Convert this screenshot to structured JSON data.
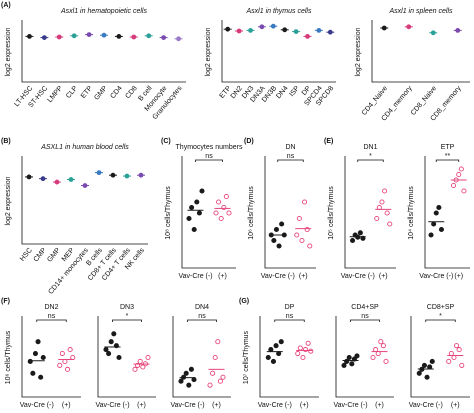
{
  "chart_data": [
    {
      "type": "strip",
      "panel": "(A)",
      "title": "Asxl1 in hematopoietic cells",
      "ylabel": "log2 expression",
      "categories": [
        "LT-HSC",
        "ST-HSC",
        "LMPP",
        "CLP",
        "ETP",
        "GMP",
        "CD4",
        "CD8",
        "B cell",
        "Monocyte",
        "Granulocytes"
      ],
      "values": [
        7.6,
        7.4,
        7.5,
        7.7,
        7.9,
        7.8,
        7.6,
        7.5,
        7.7,
        7.4,
        7.2
      ],
      "colors": [
        "#1a1a1a",
        "#3a3a8a",
        "#d63a7a",
        "#2aa198",
        "#7a4ab0",
        "#3a7ac0",
        "#1a1a1a",
        "#d63a7a",
        "#2aa198",
        "#7a4ab0",
        "#9a7ac8"
      ],
      "ylim": [
        0,
        10
      ]
    },
    {
      "type": "strip",
      "title": "Asxl1 in thymus cells",
      "ylabel": "log2 expression",
      "categories": [
        "ETP",
        "DN2",
        "DN3",
        "DN3A",
        "DN3B",
        "DN4",
        "ISP",
        "DP",
        "SPCD4",
        "SPCD8"
      ],
      "values": [
        8.8,
        8.5,
        8.6,
        9.2,
        9.3,
        8.7,
        8.4,
        7.6,
        8.6,
        8.3
      ],
      "colors": [
        "#1a1a1a",
        "#d63a7a",
        "#2aa198",
        "#7a4ab0",
        "#3a7ac0",
        "#1a1a1a",
        "#2aa198",
        "#d63a7a",
        "#3a7ac0",
        "#3a3a8a"
      ],
      "ylim": [
        0,
        10
      ]
    },
    {
      "type": "strip",
      "title": "Asxl1 in spleen cells",
      "ylabel": "log2 expression",
      "categories": [
        "CD4_Naive",
        "CD4_memory",
        "CD8_Naive",
        "CD8_memory"
      ],
      "values": [
        9.0,
        9.2,
        8.2,
        8.6
      ],
      "colors": [
        "#1a1a1a",
        "#d63a7a",
        "#2aa198",
        "#7a4ab0"
      ],
      "ylim": [
        0,
        10
      ]
    },
    {
      "type": "strip",
      "panel": "(B)",
      "title": "ASXL1 in human blood cells",
      "ylabel": "log2 expression",
      "categories": [
        "HSC",
        "CMP",
        "GMP",
        "MEP",
        "CD14+ monocytes",
        "B cells",
        "CD8+ T cells",
        "CD4+ T cells",
        "NK cells"
      ],
      "values": [
        7.8,
        7.6,
        7.2,
        7.5,
        6.8,
        8.3,
        8.0,
        7.9,
        8.0
      ],
      "colors": [
        "#1a1a1a",
        "#3a3a8a",
        "#d63a7a",
        "#2aa198",
        "#7a4ab0",
        "#3a7ac0",
        "#1a1a1a",
        "#2aa198",
        "#7a4ab0"
      ],
      "ylim": [
        0,
        10
      ]
    },
    {
      "type": "dot",
      "panel": "(C)",
      "title": "Thymocytes numbers",
      "ylabel": "10⁸ cells/Thymus",
      "annotation": "ns",
      "categories": [
        "Vav-Cre (-)",
        "(+)"
      ],
      "colors": [
        "#1a1a1a",
        "#e8457a"
      ],
      "values": [
        [
          0.45,
          0.55,
          0.35,
          0.6,
          0.5,
          0.7
        ],
        [
          0.5,
          0.6,
          0.45,
          0.55,
          0.65,
          0.5
        ]
      ],
      "ylim": [
        0,
        1
      ]
    },
    {
      "type": "dot",
      "panel": "(D)",
      "title": "DN",
      "ylabel": "10⁶ cells/Thymus",
      "annotation": "ns",
      "categories": [
        "Vav-Cre (-)",
        "(+)"
      ],
      "colors": [
        "#1a1a1a",
        "#e8457a"
      ],
      "values": [
        [
          0.3,
          0.25,
          0.35,
          0.2,
          0.4,
          0.3
        ],
        [
          0.3,
          0.45,
          0.25,
          0.6,
          0.35,
          0.2
        ]
      ],
      "ylim": [
        0,
        1
      ]
    },
    {
      "type": "dot",
      "panel": "(E)",
      "title": "DN1",
      "ylabel": "10⁵ cells/Thymus",
      "annotation": "*",
      "categories": [
        "Vav-Cre (-)",
        "(+)"
      ],
      "colors": [
        "#1a1a1a",
        "#e8457a"
      ],
      "values": [
        [
          0.25,
          0.3,
          0.28,
          0.32,
          0.27
        ],
        [
          0.45,
          0.55,
          0.6,
          0.7,
          0.5,
          0.4
        ]
      ],
      "ylim": [
        0,
        1
      ]
    },
    {
      "type": "dot",
      "title": "ETP",
      "ylabel": "10⁴ cells/Thymus",
      "annotation": "**",
      "categories": [
        "Vav-Cre (-)",
        "(+)"
      ],
      "colors": [
        "#1a1a1a",
        "#e8457a"
      ],
      "values": [
        [
          0.3,
          0.4,
          0.5,
          0.55,
          0.35
        ],
        [
          0.75,
          0.8,
          0.85,
          0.9,
          0.7
        ]
      ],
      "ylim": [
        0,
        1
      ]
    },
    {
      "type": "dot",
      "panel": "(F)",
      "title": "DN2",
      "ylabel": "10⁶ cells/Thymus",
      "annotation": "ns",
      "categories": [
        "Vav-Cre (-)",
        "(+)"
      ],
      "colors": [
        "#1a1a1a",
        "#e8457a"
      ],
      "values": [
        [
          0.45,
          0.3,
          0.55,
          0.7,
          0.25,
          0.5
        ],
        [
          0.4,
          0.55,
          0.45,
          0.35,
          0.6,
          0.5
        ]
      ],
      "ylim": [
        0,
        1
      ]
    },
    {
      "type": "dot",
      "title": "DN3",
      "annotation": "*",
      "categories": [
        "Vav-Cre (-)",
        "(+)"
      ],
      "colors": [
        "#1a1a1a",
        "#e8457a"
      ],
      "values": [
        [
          0.6,
          0.55,
          0.7,
          0.8,
          0.65,
          0.5
        ],
        [
          0.35,
          0.4,
          0.45,
          0.38,
          0.42,
          0.5
        ]
      ],
      "ylim": [
        0,
        1
      ]
    },
    {
      "type": "dot",
      "title": "DN4",
      "annotation": "ns",
      "categories": [
        "Vav-Cre (-)",
        "(+)"
      ],
      "colors": [
        "#1a1a1a",
        "#e8457a"
      ],
      "values": [
        [
          0.2,
          0.25,
          0.3,
          0.15,
          0.35,
          0.22
        ],
        [
          0.15,
          0.3,
          0.5,
          0.7,
          0.2,
          0.25
        ]
      ],
      "ylim": [
        0,
        1
      ]
    },
    {
      "type": "dot",
      "panel": "(G)",
      "title": "DP",
      "ylabel": "10⁷ cells/Thymus",
      "annotation": "ns",
      "categories": [
        "Vav-Cre (-)",
        "(+)"
      ],
      "colors": [
        "#1a1a1a",
        "#e8457a"
      ],
      "values": [
        [
          0.5,
          0.6,
          0.45,
          0.65,
          0.55,
          0.7
        ],
        [
          0.55,
          0.62,
          0.5,
          0.6,
          0.68,
          0.58
        ]
      ],
      "ylim": [
        0,
        1
      ]
    },
    {
      "type": "dot",
      "title": "CD4+SP",
      "annotation": "ns",
      "categories": [
        "Vav-Cre (-)",
        "(+)"
      ],
      "colors": [
        "#1a1a1a",
        "#e8457a"
      ],
      "values": [
        [
          0.4,
          0.45,
          0.5,
          0.42,
          0.48,
          0.52
        ],
        [
          0.5,
          0.6,
          0.55,
          0.7,
          0.65,
          0.45
        ]
      ],
      "ylim": [
        0,
        1
      ]
    },
    {
      "type": "dot",
      "title": "CD8+SP",
      "annotation": "*",
      "categories": [
        "Vav-Cre (-)",
        "(+)"
      ],
      "colors": [
        "#1a1a1a",
        "#e8457a"
      ],
      "values": [
        [
          0.3,
          0.35,
          0.4,
          0.25,
          0.38,
          0.45
        ],
        [
          0.45,
          0.55,
          0.5,
          0.65,
          0.6,
          0.4
        ]
      ],
      "ylim": [
        0,
        1
      ]
    }
  ]
}
